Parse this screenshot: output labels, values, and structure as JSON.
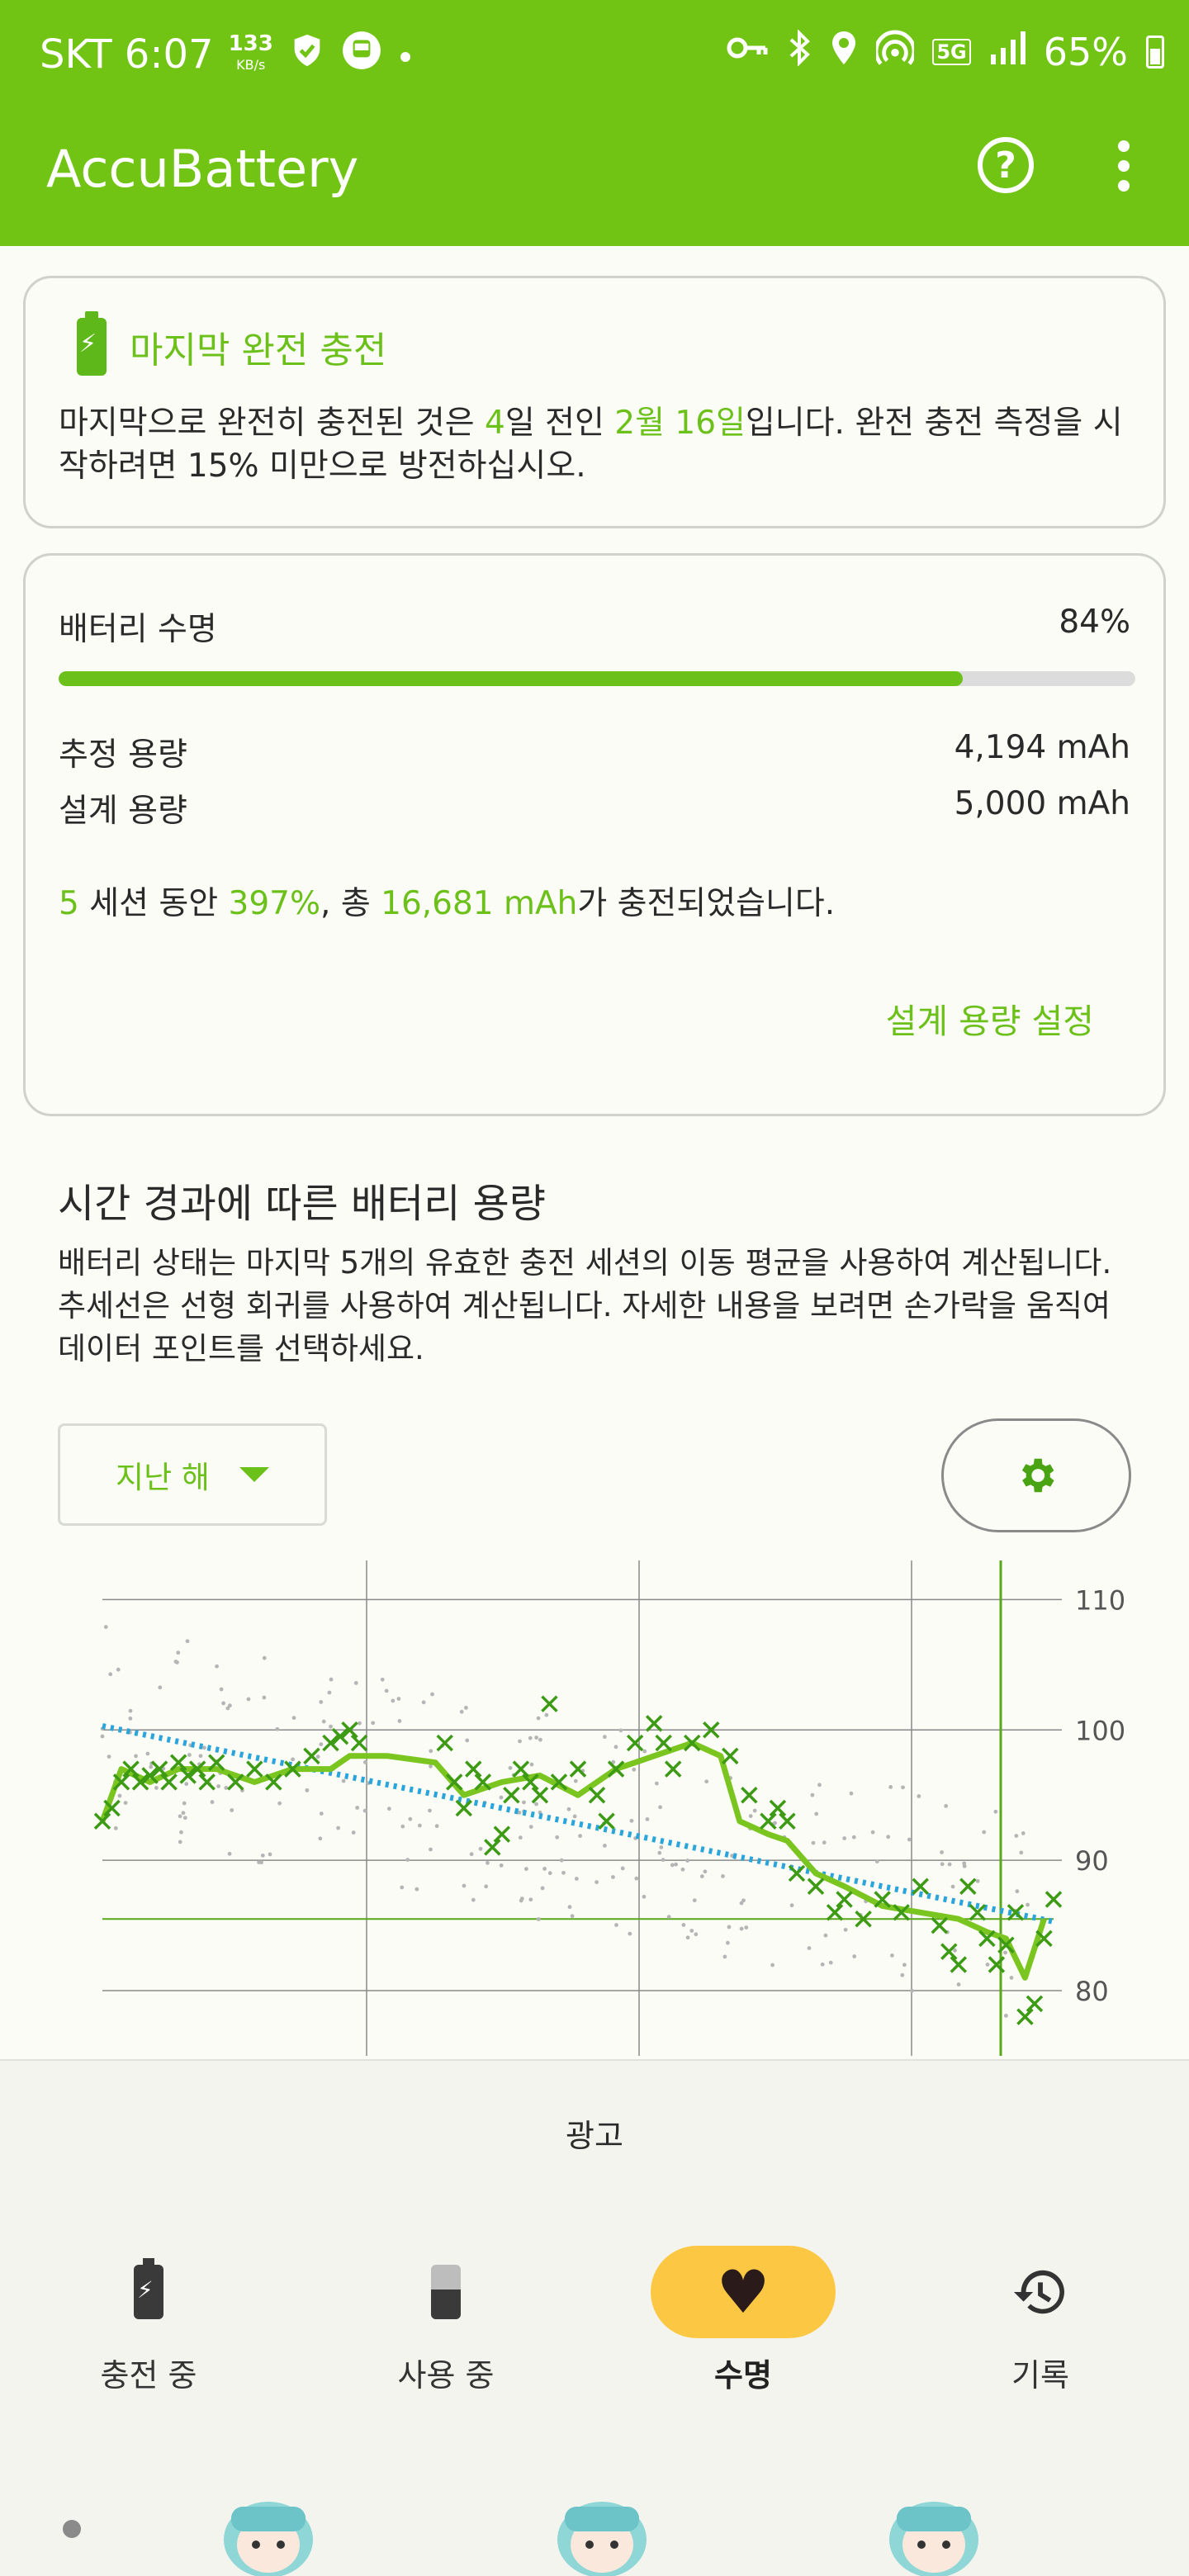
{
  "status_bar": {
    "carrier_time": "SKT 6:07",
    "speed_value": "133",
    "speed_unit": "KB/s",
    "battery_pct": "65%",
    "network": "5G",
    "icons": [
      "shield-check-icon",
      "bus-icon",
      "dot-icon",
      "key-icon",
      "bluetooth-icon",
      "location-icon",
      "hotspot-icon",
      "signal-icon",
      "battery-icon"
    ]
  },
  "app": {
    "title": "AccuBattery"
  },
  "last_charge": {
    "title": "마지막 완전 충전",
    "text_1": "마지막으로 완전히 충전된 것은 ",
    "days": "4",
    "text_2": "일 전인 ",
    "date": "2월 16일",
    "text_3": "입니다. 완전 충전 측정을 시작하려면 15% 미만으로 방전하십시오."
  },
  "health": {
    "label": "배터리 수명",
    "value": "84%",
    "fill_fraction": 0.84,
    "estimated_label": "추정 용량",
    "estimated_value": "4,194 mAh",
    "design_label": "설계 용량",
    "design_value": "5,000 mAh",
    "sessions": "5",
    "sessions_text": " 세션 동안 ",
    "percent": "397%",
    "total_text": ", 총 ",
    "total_mah": "16,681 mAh",
    "end_text": "가 충전되었습니다.",
    "set_design_link": "설계 용량 설정"
  },
  "capacity_section": {
    "title": "시간 경과에 따른 배터리 용량",
    "desc": "배터리 상태는 마지막 5개의 유효한 충전 세션의 이동 평균을 사용하여 계산됩니다. 추세선은 선형 회귀를 사용하여 계산됩니다. 자세한 내용을 보려면 손가락을 움직여 데이터 포인트를 선택하세요.",
    "range_selector": "지난 해"
  },
  "chart_data": {
    "type": "scatter",
    "y_ticks": [
      "110",
      "100",
      "90",
      "80"
    ],
    "ylim": [
      75,
      113
    ],
    "x_range": [
      0,
      100
    ],
    "reference_line": 85.5,
    "moving_average": [
      [
        0,
        93
      ],
      [
        2,
        97
      ],
      [
        5,
        96
      ],
      [
        8,
        97
      ],
      [
        12,
        97
      ],
      [
        16,
        96
      ],
      [
        20,
        97
      ],
      [
        24,
        97
      ],
      [
        26,
        98
      ],
      [
        30,
        98
      ],
      [
        35,
        97.5
      ],
      [
        38,
        95
      ],
      [
        42,
        96
      ],
      [
        46,
        96.5
      ],
      [
        50,
        95
      ],
      [
        54,
        97
      ],
      [
        58,
        98
      ],
      [
        62,
        99
      ],
      [
        65,
        98
      ],
      [
        67,
        93
      ],
      [
        70,
        92
      ],
      [
        72,
        91.5
      ],
      [
        75,
        89
      ],
      [
        78,
        88
      ],
      [
        82,
        86.5
      ],
      [
        86,
        86
      ],
      [
        90,
        85.5
      ],
      [
        93,
        84.5
      ],
      [
        95,
        84
      ],
      [
        97,
        81
      ],
      [
        99,
        85.5
      ]
    ],
    "trend": [
      [
        0,
        100.3
      ],
      [
        100,
        85.3
      ]
    ],
    "sessions": [
      [
        0,
        93
      ],
      [
        1,
        94
      ],
      [
        2,
        96
      ],
      [
        3,
        97
      ],
      [
        4,
        96
      ],
      [
        5,
        96.5
      ],
      [
        6,
        97
      ],
      [
        7,
        96
      ],
      [
        8,
        97.5
      ],
      [
        9,
        96.5
      ],
      [
        10,
        97
      ],
      [
        11,
        96
      ],
      [
        12,
        97.5
      ],
      [
        14,
        96
      ],
      [
        16,
        97
      ],
      [
        18,
        96
      ],
      [
        20,
        97
      ],
      [
        22,
        98
      ],
      [
        24,
        99
      ],
      [
        25,
        99.5
      ],
      [
        26,
        100
      ],
      [
        27,
        99
      ],
      [
        36,
        99
      ],
      [
        37,
        96
      ],
      [
        38,
        94
      ],
      [
        39,
        97
      ],
      [
        40,
        96
      ],
      [
        41,
        91
      ],
      [
        42,
        92
      ],
      [
        43,
        95
      ],
      [
        44,
        97
      ],
      [
        45,
        96
      ],
      [
        46,
        95
      ],
      [
        47,
        102
      ],
      [
        48,
        96
      ],
      [
        50,
        97
      ],
      [
        52,
        95
      ],
      [
        53,
        93
      ],
      [
        54,
        97
      ],
      [
        56,
        99
      ],
      [
        58,
        100.5
      ],
      [
        59,
        99
      ],
      [
        60,
        97
      ],
      [
        62,
        99
      ],
      [
        64,
        100
      ],
      [
        66,
        98
      ],
      [
        68,
        95
      ],
      [
        70,
        93
      ],
      [
        71,
        94
      ],
      [
        72,
        93
      ],
      [
        73,
        89
      ],
      [
        75,
        88
      ],
      [
        77,
        86
      ],
      [
        78,
        87
      ],
      [
        80,
        85.5
      ],
      [
        82,
        87
      ],
      [
        84,
        86
      ],
      [
        86,
        88
      ],
      [
        88,
        85
      ],
      [
        89,
        83
      ],
      [
        90,
        82
      ],
      [
        91,
        88
      ],
      [
        92,
        86
      ],
      [
        93,
        84
      ],
      [
        94,
        82
      ],
      [
        95,
        83.5
      ],
      [
        96,
        86
      ],
      [
        97,
        78
      ],
      [
        98,
        79
      ],
      [
        99,
        84
      ],
      [
        100,
        87
      ]
    ]
  },
  "ad": {
    "label": "광고"
  },
  "nav": {
    "items": [
      {
        "label": "충전 중",
        "icon": "battery-charging-icon"
      },
      {
        "label": "사용 중",
        "icon": "battery-discharging-icon"
      },
      {
        "label": "수명",
        "icon": "heart-icon"
      },
      {
        "label": "기록",
        "icon": "history-icon"
      }
    ]
  }
}
